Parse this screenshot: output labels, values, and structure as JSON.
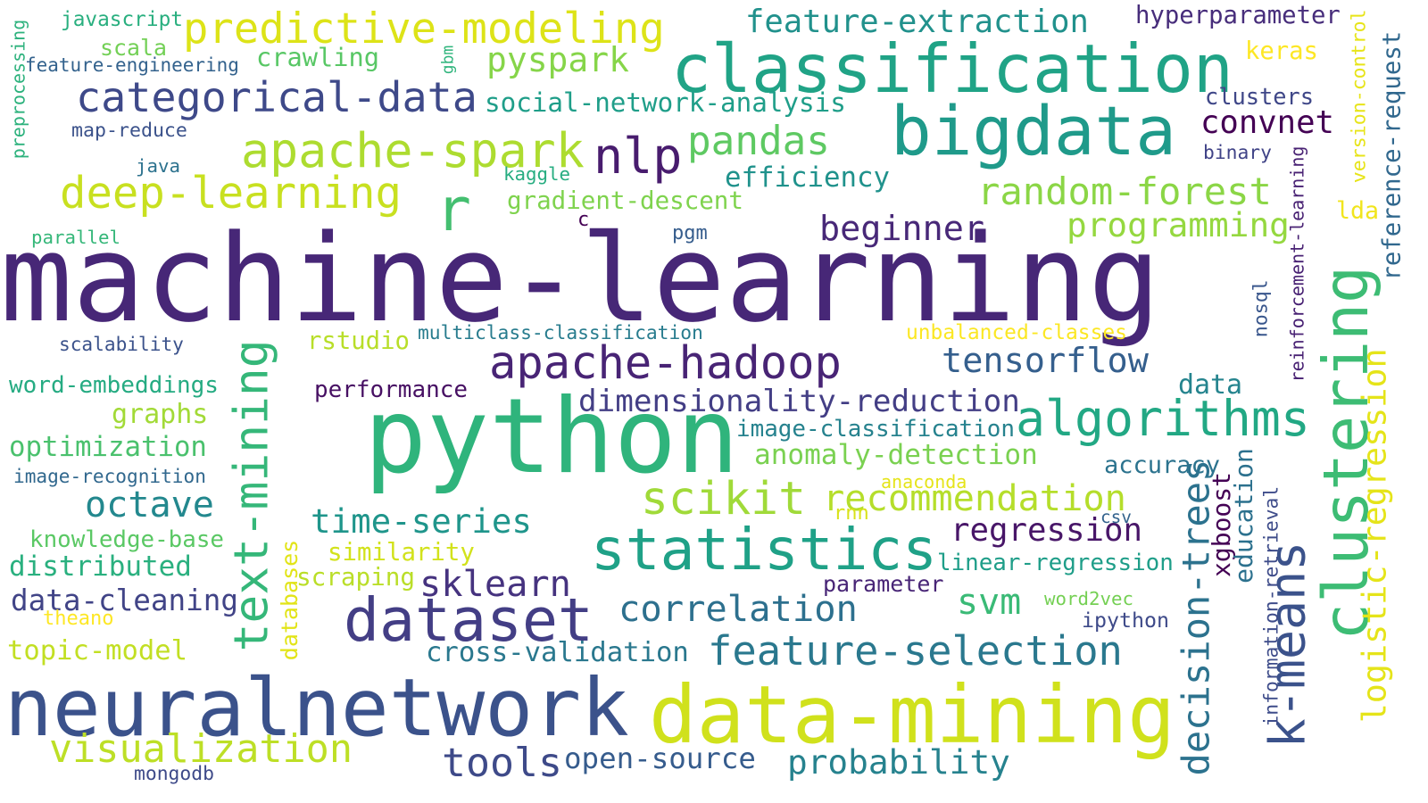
{
  "words": [
    {
      "text": "machine-learning",
      "color": "#472777"
    },
    {
      "text": "python",
      "color": "#2fb47c"
    },
    {
      "text": "neuralnetwork",
      "color": "#3b528b"
    },
    {
      "text": "classification",
      "color": "#20a386"
    },
    {
      "text": "data-mining",
      "color": "#d0e11c"
    },
    {
      "text": "bigdata",
      "color": "#1f9a8a"
    },
    {
      "text": "clustering",
      "color": "#3dbc74"
    },
    {
      "text": "statistics",
      "color": "#1fa187"
    },
    {
      "text": "dataset",
      "color": "#433e85"
    },
    {
      "text": "r",
      "color": "#44bf70"
    },
    {
      "text": "apache-spark",
      "color": "#addc30"
    },
    {
      "text": "text-mining",
      "color": "#35b779"
    },
    {
      "text": "k-means",
      "color": "#3b528b"
    },
    {
      "text": "predictive-modeling",
      "color": "#dde318"
    },
    {
      "text": "categorical-data",
      "color": "#3e4989"
    },
    {
      "text": "deep-learning",
      "color": "#c8e020"
    },
    {
      "text": "apache-hadoop",
      "color": "#482475"
    },
    {
      "text": "algorithms",
      "color": "#22a884"
    },
    {
      "text": "nlp",
      "color": "#481c6e"
    },
    {
      "text": "scikit",
      "color": "#a0da39"
    },
    {
      "text": "feature-selection",
      "color": "#2a788e"
    },
    {
      "text": "decision-trees",
      "color": "#2c728e"
    },
    {
      "text": "logistic-regression",
      "color": "#e5e419"
    },
    {
      "text": "recommendation",
      "color": "#b5de2b"
    },
    {
      "text": "visualization",
      "color": "#bddf26"
    },
    {
      "text": "pandas",
      "color": "#5ec962"
    },
    {
      "text": "random-forest",
      "color": "#8bd646"
    },
    {
      "text": "correlation",
      "color": "#2d708e"
    },
    {
      "text": "tools",
      "color": "#3e4a89"
    },
    {
      "text": "probability",
      "color": "#26828e"
    },
    {
      "text": "pyspark",
      "color": "#86d549"
    },
    {
      "text": "sklearn",
      "color": "#46337f"
    },
    {
      "text": "time-series",
      "color": "#1f958b"
    },
    {
      "text": "tensorflow",
      "color": "#355f8d"
    },
    {
      "text": "octave",
      "color": "#23888e"
    },
    {
      "text": "dimensionality-reduction",
      "color": "#433e85"
    },
    {
      "text": "programming",
      "color": "#95d840"
    },
    {
      "text": "beginner",
      "color": "#482878"
    },
    {
      "text": "convnet",
      "color": "#440154"
    },
    {
      "text": "regression",
      "color": "#481668"
    },
    {
      "text": "open-source",
      "color": "#365c8d"
    },
    {
      "text": "feature-extraction",
      "color": "#21918c"
    },
    {
      "text": "cross-validation",
      "color": "#2a788e"
    },
    {
      "text": "svm",
      "color": "#3aba76"
    },
    {
      "text": "data-cleaning",
      "color": "#414487"
    },
    {
      "text": "anomaly-detection",
      "color": "#7ad151"
    },
    {
      "text": "efficiency",
      "color": "#20928c"
    },
    {
      "text": "optimization",
      "color": "#4ac16d"
    },
    {
      "text": "distributed",
      "color": "#2ab07f"
    },
    {
      "text": "social-network-analysis",
      "color": "#1f9e89"
    },
    {
      "text": "reference-request",
      "color": "#31688e"
    },
    {
      "text": "gradient-descent",
      "color": "#7fd34e"
    },
    {
      "text": "topic-model",
      "color": "#c2df23"
    },
    {
      "text": "xgboost",
      "color": "#440154"
    },
    {
      "text": "education",
      "color": "#2c718e"
    },
    {
      "text": "image-classification",
      "color": "#26828e"
    },
    {
      "text": "linear-regression",
      "color": "#1f9e89"
    },
    {
      "text": "word-embeddings",
      "color": "#25ab82"
    },
    {
      "text": "graphs",
      "color": "#a2da37"
    },
    {
      "text": "crawling",
      "color": "#58c765"
    },
    {
      "text": "similarity",
      "color": "#d2e21b"
    },
    {
      "text": "hyperparameter",
      "color": "#472d7b"
    },
    {
      "text": "databases",
      "color": "#e2e418"
    },
    {
      "text": "rstudio",
      "color": "#b8de29"
    },
    {
      "text": "scraping",
      "color": "#bade28"
    },
    {
      "text": "knowledge-base",
      "color": "#5ac864"
    },
    {
      "text": "data",
      "color": "#25848e"
    },
    {
      "text": "clusters",
      "color": "#3f4788"
    },
    {
      "text": "performance",
      "color": "#471063"
    },
    {
      "text": "multiclass-classification",
      "color": "#287c8e"
    },
    {
      "text": "parameter",
      "color": "#482576"
    },
    {
      "text": "information-retrieval",
      "color": "#3e4c8a"
    },
    {
      "text": "reinforcement-learning",
      "color": "#482173"
    },
    {
      "text": "scala",
      "color": "#73d056"
    },
    {
      "text": "lda",
      "color": "#f1e51d"
    },
    {
      "text": "accuracy",
      "color": "#2c738e"
    },
    {
      "text": "keras",
      "color": "#fde725"
    },
    {
      "text": "unbalanced-classes",
      "color": "#fbe723"
    },
    {
      "text": "ipython",
      "color": "#3e4a89"
    },
    {
      "text": "image-recognition",
      "color": "#31688e"
    },
    {
      "text": "nosql",
      "color": "#39568c"
    },
    {
      "text": "javascript",
      "color": "#29af7f"
    },
    {
      "text": "feature-engineering",
      "color": "#33628d"
    },
    {
      "text": "version-control",
      "color": "#e7e419"
    },
    {
      "text": "scalability",
      "color": "#3b528b"
    },
    {
      "text": "theano",
      "color": "#fde725"
    },
    {
      "text": "mongodb",
      "color": "#3e4a89"
    },
    {
      "text": "word2vec",
      "color": "#75d054"
    },
    {
      "text": "map-reduce",
      "color": "#3b528b"
    },
    {
      "text": "preprocessing",
      "color": "#2db27d"
    },
    {
      "text": "binary",
      "color": "#404387"
    },
    {
      "text": "java",
      "color": "#2c728e"
    },
    {
      "text": "kaggle",
      "color": "#27ad81"
    },
    {
      "text": "csv",
      "color": "#33638d"
    },
    {
      "text": "anaconda",
      "color": "#e5e419"
    },
    {
      "text": "parallel",
      "color": "#35b779"
    },
    {
      "text": "pgm",
      "color": "#365d8d"
    },
    {
      "text": "gbm",
      "color": "#2fb47c"
    },
    {
      "text": "rnn",
      "color": "#d8e219"
    },
    {
      "text": "c",
      "color": "#440154"
    }
  ]
}
